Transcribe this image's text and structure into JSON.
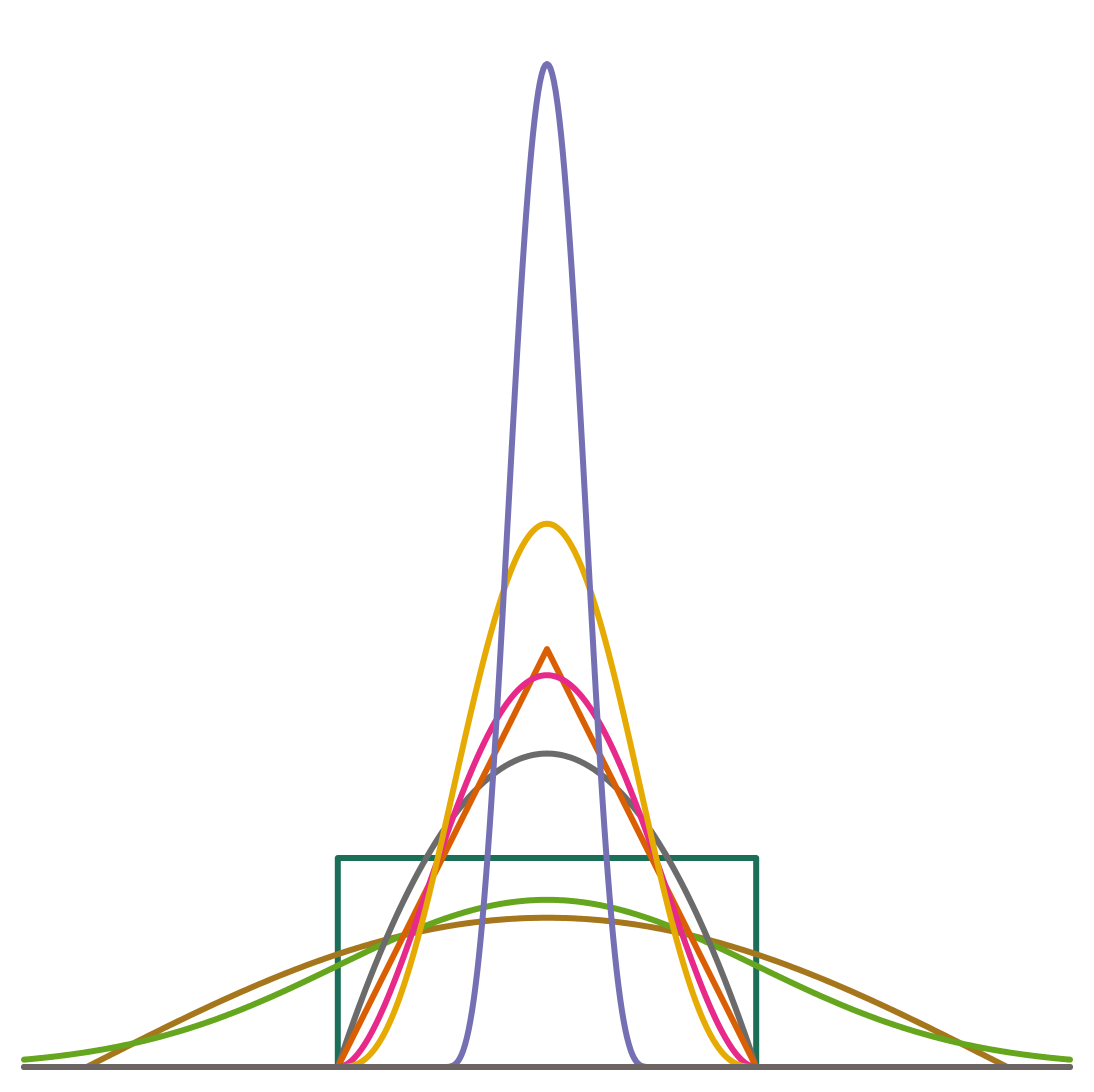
{
  "chart_data": {
    "type": "line",
    "title": "",
    "xlabel": "",
    "ylabel": "",
    "grid": false,
    "legend": "none",
    "axes_visible": false,
    "xlim": [
      -2.5,
      2.5
    ],
    "ylim": [
      0,
      2.4
    ],
    "series": [
      {
        "kernel": "uniform",
        "color": "#1b6e58",
        "support": [
          -1,
          1
        ],
        "values": {
          "-1": 0.5,
          "0": 0.5,
          "1": 0.5
        }
      },
      {
        "kernel": "triangular",
        "color": "#d95f02",
        "support": [
          -1,
          1
        ],
        "values": {
          "-1": 0,
          "0": 1,
          "1": 0
        }
      },
      {
        "kernel": "epanechnikov",
        "color": "#6b6b6b",
        "support": [
          -1,
          1
        ],
        "values": {
          "-1": 0,
          "0": 0.75,
          "1": 0
        }
      },
      {
        "kernel": "quartic",
        "color": "#e7298a",
        "support": [
          -1,
          1
        ],
        "values": {
          "-1": 0,
          "0": 0.9375,
          "1": 0
        }
      },
      {
        "kernel": "triweight",
        "color": "#e6ab02",
        "support": [
          -1,
          1
        ],
        "values": {
          "-1": 0,
          "0": 1.3,
          "1": 0
        }
      },
      {
        "kernel": "gaussian",
        "color": "#66a61e",
        "support": [
          -2.5,
          2.5
        ],
        "values": {
          "0": 0.4
        }
      },
      {
        "kernel": "cosine",
        "color": "#a6761d",
        "support": [
          -2.2,
          2.2
        ],
        "values": {
          "-2.2": 0,
          "0": 0.3571,
          "2.2": 0
        }
      },
      {
        "kernel": "gaussian-narrow",
        "color": "#7570b3",
        "support": [
          -0.5,
          0.5
        ],
        "values": {
          "0": 2.4
        }
      },
      {
        "kernel": "baseline",
        "color": "#6b6463",
        "support": [
          -2.5,
          2.5
        ],
        "values": {
          "-2.5": 0,
          "2.5": 0
        }
      }
    ]
  }
}
